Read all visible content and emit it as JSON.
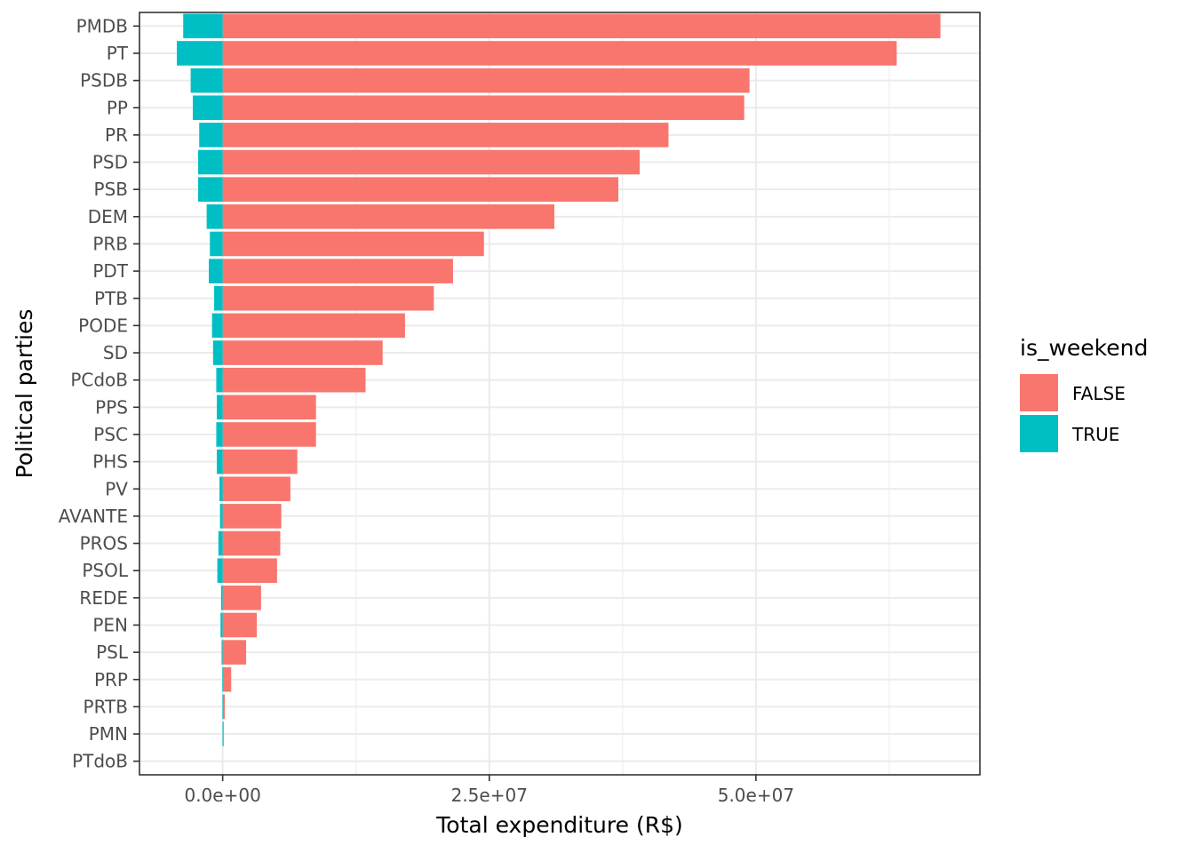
{
  "chart_data": {
    "type": "bar",
    "orientation": "horizontal",
    "stacked": true,
    "xlabel": "Total expenditure (R$)",
    "ylabel": "Political parties",
    "xlim": [
      -7800000,
      71000000
    ],
    "x_ticks": [
      0,
      25000000,
      50000000
    ],
    "x_tick_labels": [
      "0.0e+00",
      "2.5e+07",
      "5.0e+07"
    ],
    "grid": true,
    "legend": {
      "title": "is_weekend",
      "placement": "right"
    },
    "categories": [
      "PMDB",
      "PT",
      "PSDB",
      "PP",
      "PR",
      "PSD",
      "PSB",
      "DEM",
      "PRB",
      "PDT",
      "PTB",
      "PODE",
      "SD",
      "PCdoB",
      "PPS",
      "PSC",
      "PHS",
      "PV",
      "AVANTE",
      "PROS",
      "PSOL",
      "REDE",
      "PEN",
      "PSL",
      "PRP",
      "PRTB",
      "PMN",
      "PTdoB"
    ],
    "series": [
      {
        "name": "FALSE",
        "color": "#F8766D",
        "values": [
          67300000,
          63200000,
          49400000,
          48900000,
          41800000,
          39100000,
          37100000,
          31100000,
          24500000,
          21600000,
          19800000,
          17100000,
          15000000,
          13400000,
          8750000,
          8750000,
          7000000,
          6350000,
          5500000,
          5400000,
          5100000,
          3600000,
          3200000,
          2200000,
          800000,
          200000,
          100000,
          0
        ]
      },
      {
        "name": "TRUE",
        "color": "#00BFC4",
        "values": [
          -3700000,
          -4300000,
          -3000000,
          -2800000,
          -2200000,
          -2300000,
          -2300000,
          -1500000,
          -1200000,
          -1300000,
          -800000,
          -1000000,
          -900000,
          -600000,
          -550000,
          -600000,
          -550000,
          -300000,
          -250000,
          -400000,
          -500000,
          -150000,
          -200000,
          -100000,
          -30000,
          -20000,
          -10000,
          0
        ]
      }
    ]
  }
}
